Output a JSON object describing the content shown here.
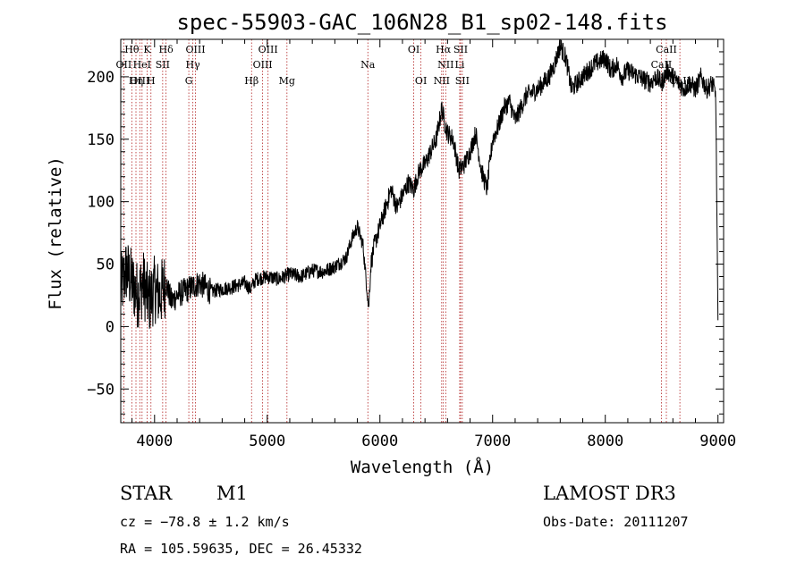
{
  "chart_data": {
    "type": "line",
    "title": "spec-55903-GAC_106N28_B1_sp02-148.fits",
    "xlabel": "Wavelength (Å)",
    "ylabel": "Flux (relative)",
    "xlim": [
      3700,
      9050
    ],
    "ylim": [
      -77,
      230
    ],
    "x_ticks": [
      4000,
      5000,
      6000,
      7000,
      8000,
      9000
    ],
    "x_tick_labels": [
      "4000",
      "5000",
      "6000",
      "7000",
      "8000",
      "9000"
    ],
    "y_ticks": [
      -50,
      0,
      50,
      100,
      150,
      200
    ],
    "y_tick_labels": [
      "−50",
      "0",
      "50",
      "100",
      "150",
      "200"
    ],
    "series": [
      {
        "name": "flux",
        "color": "#000000",
        "x": [
          3700,
          3750,
          3800,
          3850,
          3900,
          3950,
          4000,
          4050,
          4100,
          4150,
          4200,
          4300,
          4400,
          4500,
          4600,
          4700,
          4800,
          4850,
          4900,
          5000,
          5100,
          5200,
          5300,
          5400,
          5500,
          5600,
          5700,
          5750,
          5800,
          5850,
          5900,
          5920,
          5950,
          6000,
          6050,
          6100,
          6150,
          6200,
          6250,
          6300,
          6350,
          6400,
          6450,
          6500,
          6550,
          6570,
          6600,
          6650,
          6700,
          6750,
          6800,
          6850,
          6900,
          6950,
          7000,
          7050,
          7100,
          7150,
          7200,
          7250,
          7300,
          7400,
          7500,
          7550,
          7600,
          7650,
          7700,
          7750,
          7800,
          7850,
          7900,
          8000,
          8050,
          8100,
          8150,
          8200,
          8300,
          8400,
          8450,
          8500,
          8550,
          8600,
          8650,
          8700,
          8750,
          8800,
          8850,
          8900,
          8950,
          8980,
          9000
        ],
        "y": [
          30,
          45,
          35,
          25,
          35,
          20,
          30,
          25,
          35,
          20,
          25,
          30,
          35,
          28,
          30,
          32,
          35,
          30,
          38,
          40,
          38,
          42,
          40,
          45,
          44,
          48,
          55,
          70,
          80,
          65,
          15,
          50,
          65,
          80,
          95,
          110,
          95,
          105,
          115,
          110,
          125,
          130,
          140,
          150,
          175,
          165,
          155,
          150,
          125,
          130,
          140,
          155,
          125,
          110,
          150,
          160,
          175,
          180,
          165,
          175,
          185,
          190,
          200,
          210,
          225,
          215,
          190,
          195,
          200,
          205,
          210,
          215,
          205,
          210,
          200,
          205,
          200,
          195,
          200,
          195,
          205,
          200,
          195,
          190,
          195,
          190,
          200,
          190,
          195,
          185,
          5
        ]
      }
    ],
    "lines": [
      {
        "label": "Hθ",
        "x": 3798,
        "row": 0
      },
      {
        "label": "K",
        "x": 3934,
        "row": 0
      },
      {
        "label": "Hδ",
        "x": 4102,
        "row": 0
      },
      {
        "label": "OIII",
        "x": 4363,
        "row": 0
      },
      {
        "label": "OIII",
        "x": 5007,
        "row": 0
      },
      {
        "label": "OI",
        "x": 6300,
        "row": 0
      },
      {
        "label": "Hα",
        "x": 6563,
        "row": 0
      },
      {
        "label": "SII",
        "x": 6716,
        "row": 0
      },
      {
        "label": "CaII",
        "x": 8542,
        "row": 0
      },
      {
        "label": "OII",
        "x": 3727,
        "row": 1
      },
      {
        "label": "HeI",
        "x": 3889,
        "row": 1
      },
      {
        "label": "SII",
        "x": 4072,
        "row": 1
      },
      {
        "label": "Hγ",
        "x": 4340,
        "row": 1
      },
      {
        "label": "OIII",
        "x": 4959,
        "row": 1
      },
      {
        "label": "Na",
        "x": 5893,
        "row": 1
      },
      {
        "label": "NII",
        "x": 6584,
        "row": 1
      },
      {
        "label": "Li",
        "x": 6708,
        "row": 1
      },
      {
        "label": "CaII",
        "x": 8498,
        "row": 1
      },
      {
        "label": "OIII",
        "x": 3869,
        "row": 2
      },
      {
        "label": "Hη",
        "x": 3835,
        "row": 2
      },
      {
        "label": "H",
        "x": 3968,
        "row": 2
      },
      {
        "label": "G",
        "x": 4304,
        "row": 2
      },
      {
        "label": "Hβ",
        "x": 4861,
        "row": 2
      },
      {
        "label": "Mg",
        "x": 5175,
        "row": 2
      },
      {
        "label": "OI",
        "x": 6364,
        "row": 2
      },
      {
        "label": "NII",
        "x": 6548,
        "row": 2
      },
      {
        "label": "SII",
        "x": 6731,
        "row": 2
      },
      {
        "label": "CaII",
        "x": 8662,
        "row": 2
      }
    ]
  },
  "info": {
    "object_class": "STAR",
    "subclass": "M1",
    "survey": "LAMOST DR3",
    "cz": "cz = −78.8 ± 1.2 km/s",
    "obs_date": "Obs-Date: 20111207",
    "coords": "RA = 105.59635, DEC =  26.45332"
  }
}
